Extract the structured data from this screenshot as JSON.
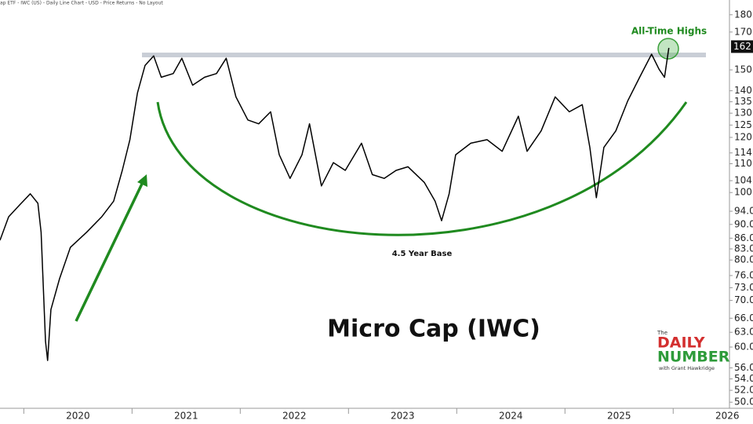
{
  "chart_data": {
    "type": "line",
    "title": "Micro Cap (IWC)",
    "subtitle": "ap ETF - IWC (US) - Daily Line Chart - USD - Price Returns - No Layout",
    "annotations": [
      "All-Time Highs",
      "4.5 Year Base"
    ],
    "logo": {
      "top": "The",
      "line1": "DAILY",
      "line2": "NUMBER",
      "byline": "with Grant Hawkridge"
    },
    "log_scale": true,
    "xlim": [
      2019.78,
      2026.52
    ],
    "xticks": [
      2020,
      2021,
      2022,
      2023,
      2024,
      2025,
      2026
    ],
    "ylim": [
      49,
      189
    ],
    "yticks": [
      {
        "value": 180,
        "label": "180.00"
      },
      {
        "value": 170,
        "label": "170.00"
      },
      {
        "value": 150,
        "label": "150.00"
      },
      {
        "value": 140,
        "label": "140.00"
      },
      {
        "value": 135,
        "label": "135.00"
      },
      {
        "value": 130,
        "label": "130.00"
      },
      {
        "value": 125,
        "label": "125.00"
      },
      {
        "value": 120,
        "label": "120.00"
      },
      {
        "value": 114,
        "label": "114.00"
      },
      {
        "value": 110,
        "label": "110.00"
      },
      {
        "value": 104,
        "label": "104.00"
      },
      {
        "value": 100,
        "label": "100.00"
      },
      {
        "value": 94,
        "label": "94.00"
      },
      {
        "value": 90,
        "label": "90.00"
      },
      {
        "value": 86,
        "label": "86.00"
      },
      {
        "value": 83,
        "label": "83.00"
      },
      {
        "value": 80,
        "label": "80.00"
      },
      {
        "value": 76,
        "label": "76.00"
      },
      {
        "value": 73,
        "label": "73.00"
      },
      {
        "value": 70,
        "label": "70.00"
      },
      {
        "value": 66,
        "label": "66.00"
      },
      {
        "value": 63,
        "label": "63.00"
      },
      {
        "value": 60,
        "label": "60.00"
      },
      {
        "value": 56,
        "label": "56.00"
      },
      {
        "value": 54,
        "label": "54.00"
      },
      {
        "value": 52,
        "label": "52.00"
      },
      {
        "value": 50,
        "label": "50.00"
      }
    ],
    "last_price": 162,
    "series": [
      {
        "color": "#000000",
        "x": [
          2019.78,
          2019.86,
          2019.96,
          2020.06,
          2020.13,
          2020.16,
          2020.2,
          2020.22,
          2020.25,
          2020.33,
          2020.43,
          2020.58,
          2020.72,
          2020.83,
          2020.91,
          2020.98,
          2021.05,
          2021.12,
          2021.2,
          2021.27,
          2021.38,
          2021.46,
          2021.56,
          2021.67,
          2021.78,
          2021.87,
          2021.96,
          2022.07,
          2022.17,
          2022.28,
          2022.36,
          2022.46,
          2022.57,
          2022.64,
          2022.75,
          2022.86,
          2022.97,
          2023.12,
          2023.22,
          2023.33,
          2023.44,
          2023.55,
          2023.7,
          2023.8,
          2023.86,
          2023.93,
          2023.99,
          2024.13,
          2024.28,
          2024.42,
          2024.57,
          2024.65,
          2024.78,
          2024.91,
          2025.04,
          2025.16,
          2025.23,
          2025.29,
          2025.36,
          2025.47,
          2025.58,
          2025.69,
          2025.8,
          2025.87,
          2025.92,
          2025.96
        ],
        "values": [
          85.4,
          92.3,
          95.9,
          99.6,
          96.5,
          87.7,
          61.2,
          57.4,
          67.9,
          75.2,
          83.4,
          87.7,
          92.3,
          97.2,
          107.6,
          119.1,
          138.9,
          152.2,
          157.1,
          146.4,
          148.2,
          155.9,
          142.6,
          146.4,
          148.2,
          155.9,
          137.2,
          127.1,
          125.5,
          130.6,
          113.3,
          104.8,
          113.3,
          125.5,
          102.2,
          110.4,
          107.6,
          117.7,
          106.1,
          104.8,
          107.6,
          108.9,
          103.4,
          97.2,
          91.1,
          99.6,
          113.3,
          117.7,
          119.1,
          114.6,
          128.7,
          114.6,
          122.6,
          137.2,
          130.6,
          133.7,
          116.1,
          98.3,
          116.1,
          122.6,
          135.4,
          146.4,
          158.0,
          150.3,
          146.4,
          161.3
        ]
      }
    ]
  }
}
